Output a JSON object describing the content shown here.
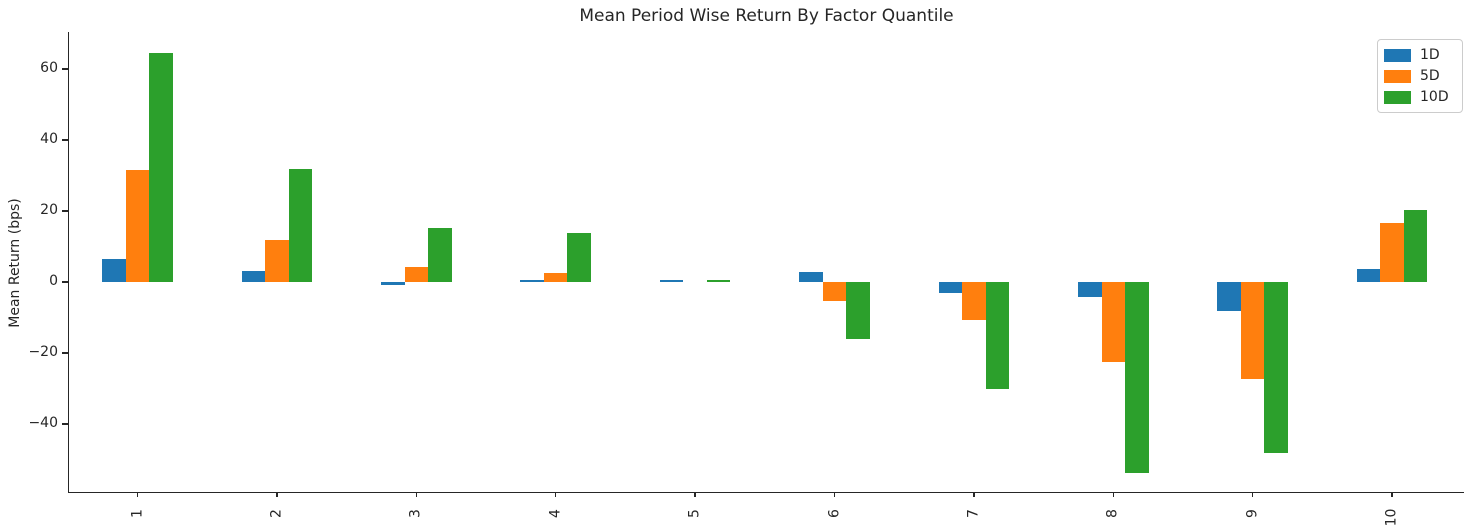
{
  "title": "Mean Period Wise Return By Factor Quantile",
  "chart_data": {
    "type": "bar",
    "title": "Mean Period Wise Return By Factor Quantile",
    "categories": [
      "1",
      "2",
      "3",
      "4",
      "5",
      "6",
      "7",
      "8",
      "9",
      "10"
    ],
    "series": [
      {
        "name": "1D",
        "color": "#1f77b4",
        "values": [
          6.4,
          3.1,
          -0.8,
          0.5,
          0.6,
          2.8,
          -3.0,
          -4.2,
          -8.2,
          3.7
        ]
      },
      {
        "name": "5D",
        "color": "#ff7f0e",
        "values": [
          31.5,
          11.9,
          4.2,
          2.5,
          0.0,
          -5.4,
          -10.7,
          -22.6,
          -27.3,
          16.7
        ]
      },
      {
        "name": "10D",
        "color": "#2ca02c",
        "values": [
          64.4,
          31.8,
          15.2,
          13.8,
          0.6,
          -16.0,
          -30.2,
          -53.7,
          -48.3,
          20.3
        ]
      }
    ],
    "xlabel": "",
    "ylabel": "Mean Return (bps)",
    "ylim": [
      -59.5,
      70.5
    ],
    "yticks": [
      {
        "value": 60,
        "label": "60"
      },
      {
        "value": 40,
        "label": "40"
      },
      {
        "value": 20,
        "label": "20"
      },
      {
        "value": 0,
        "label": "0"
      },
      {
        "value": -20,
        "label": "−20"
      },
      {
        "value": -40,
        "label": "−40"
      }
    ],
    "legend_position": "upper right",
    "grid": false,
    "background": "#ffffff",
    "axis_color": "#262626"
  }
}
